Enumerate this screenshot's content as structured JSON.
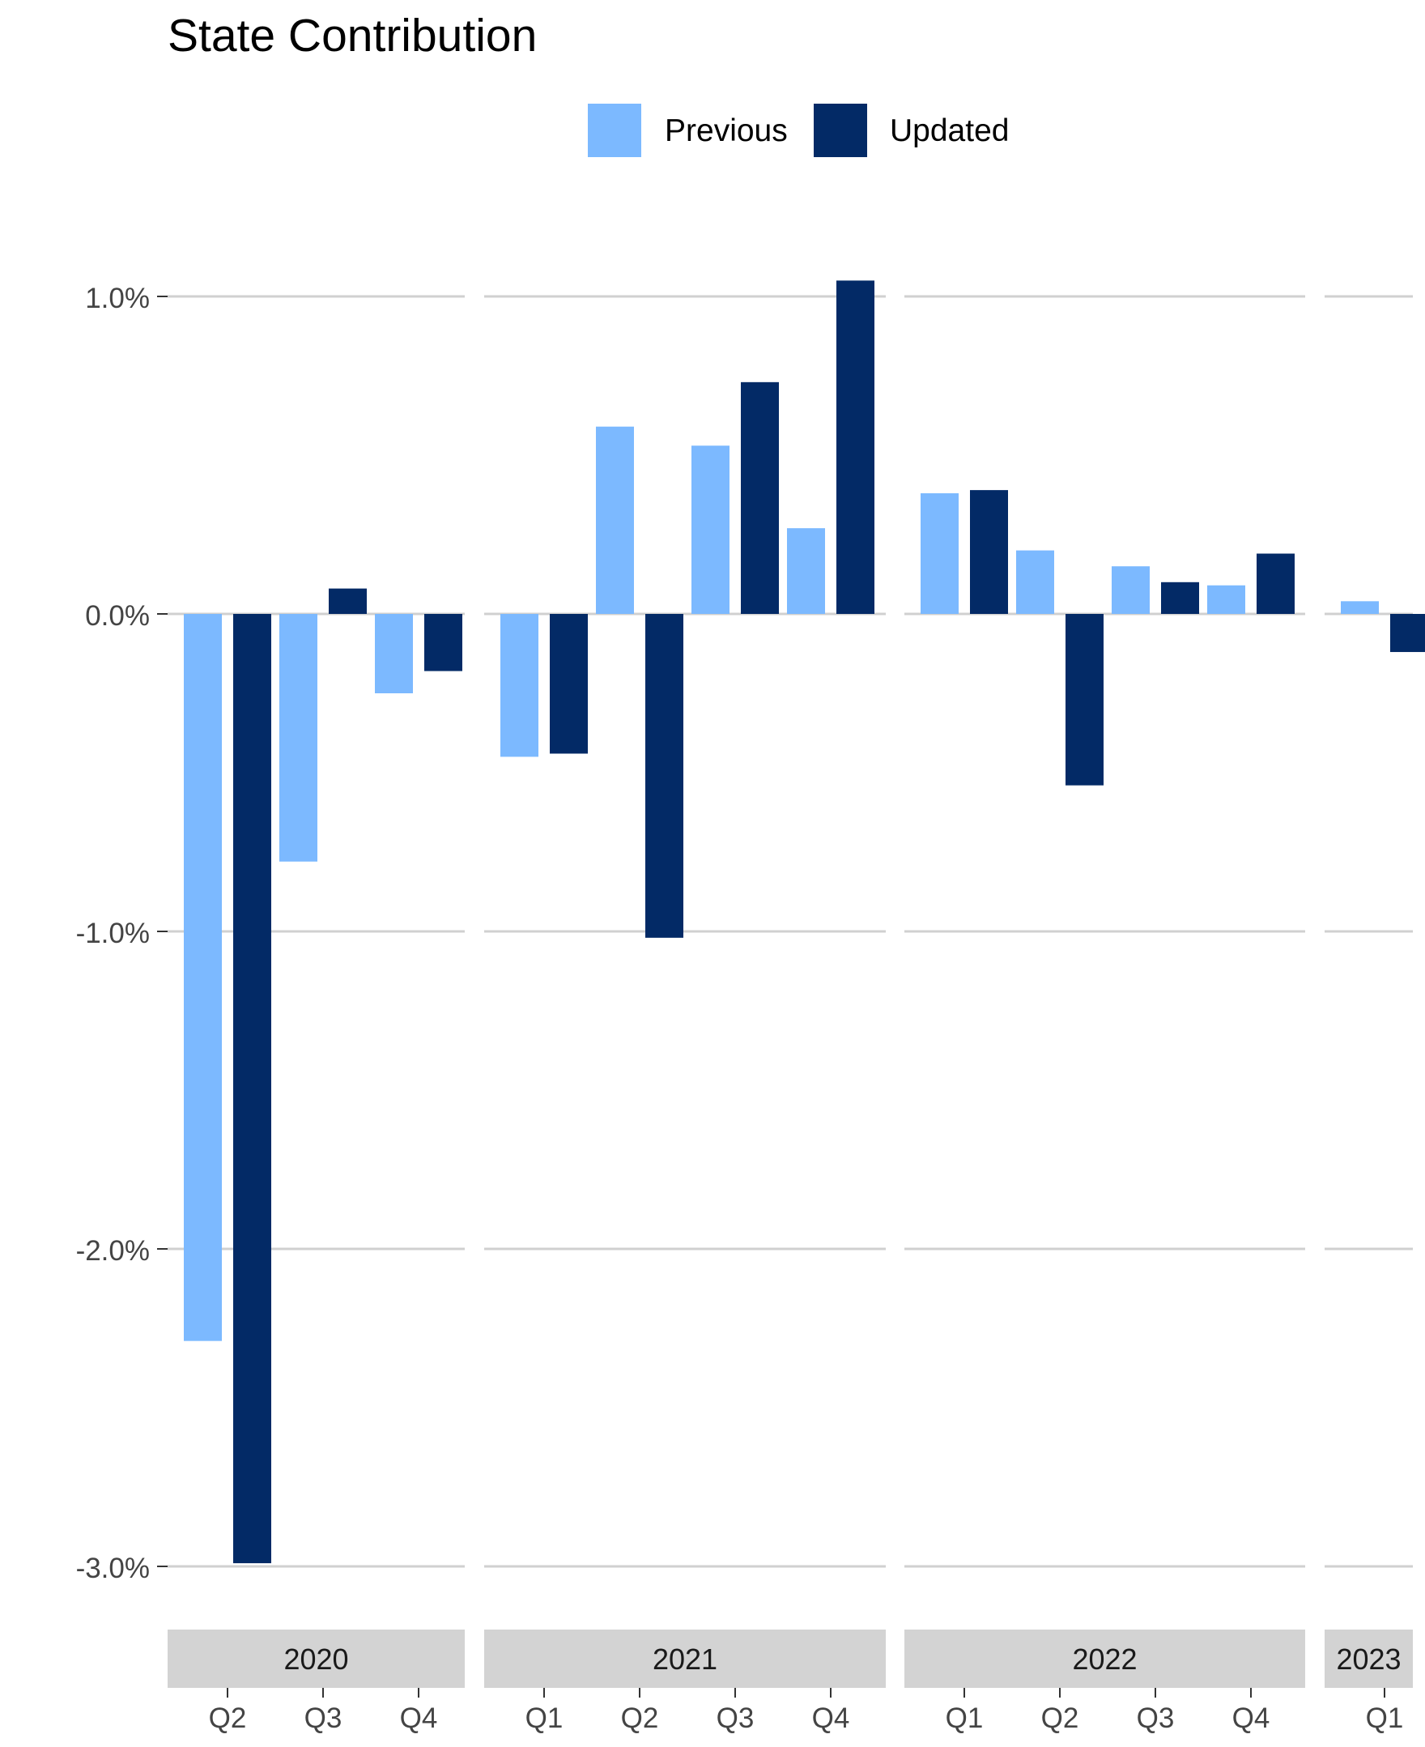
{
  "chart_data": {
    "type": "bar",
    "title": "State Contribution",
    "xlabel": "",
    "ylabel": "",
    "ylim": [
      -3.1,
      1.1
    ],
    "y_ticks": [
      1.0,
      0.0,
      -1.0,
      -2.0,
      -3.0
    ],
    "y_tick_labels": [
      "1.0%",
      "0.0%",
      "-1.0%",
      "-2.0%",
      "-3.0%"
    ],
    "grid": "horizontal major lines",
    "legend_position": "top",
    "colors": {
      "Previous": "#7cb9ff",
      "Updated": "#032a66"
    },
    "series": [
      {
        "name": "Previous",
        "color": "#7cb9ff"
      },
      {
        "name": "Updated",
        "color": "#032a66"
      }
    ],
    "panels": [
      {
        "label": "2020",
        "categories": [
          "Q2",
          "Q3",
          "Q4"
        ],
        "values": {
          "Previous": [
            -2.29,
            -0.78,
            -0.25
          ],
          "Updated": [
            -2.99,
            0.08,
            -0.18
          ]
        }
      },
      {
        "label": "2021",
        "categories": [
          "Q1",
          "Q2",
          "Q3",
          "Q4"
        ],
        "values": {
          "Previous": [
            -0.45,
            0.59,
            0.53,
            0.27
          ],
          "Updated": [
            -0.44,
            -1.02,
            0.73,
            1.05
          ]
        }
      },
      {
        "label": "2022",
        "categories": [
          "Q1",
          "Q2",
          "Q3",
          "Q4"
        ],
        "values": {
          "Previous": [
            0.38,
            0.2,
            0.15,
            0.09
          ],
          "Updated": [
            0.39,
            -0.54,
            0.1,
            0.19
          ]
        }
      },
      {
        "label": "2023",
        "categories": [
          "Q1"
        ],
        "values": {
          "Previous": [
            0.04
          ],
          "Updated": [
            -0.12
          ]
        }
      }
    ]
  }
}
